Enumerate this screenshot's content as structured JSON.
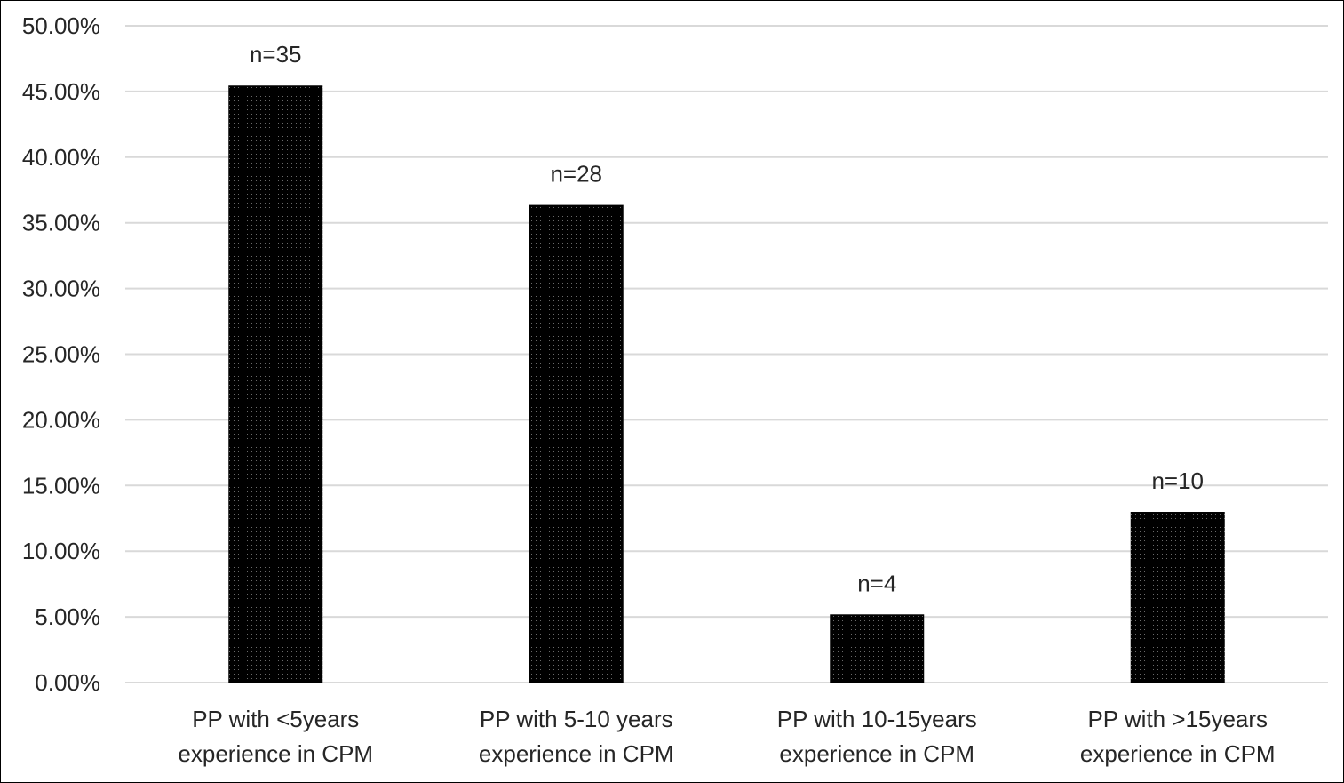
{
  "chart_data": {
    "type": "bar",
    "categories": [
      [
        "PP with <5years",
        "experience in CPM"
      ],
      [
        "PP with 5-10 years",
        "experience in CPM"
      ],
      [
        "PP with 10-15years",
        "experience in CPM"
      ],
      [
        "PP with >15years",
        "experience in CPM"
      ]
    ],
    "values": [
      45.45,
      36.36,
      5.19,
      12.99
    ],
    "data_labels": [
      "n=35",
      "n=28",
      "n=4",
      "n=10"
    ],
    "yticks": [
      "0.00%",
      "5.00%",
      "10.00%",
      "15.00%",
      "20.00%",
      "25.00%",
      "30.00%",
      "35.00%",
      "40.00%",
      "45.00%",
      "50.00%"
    ],
    "ylim": [
      0,
      50
    ],
    "grid": true,
    "colors": {
      "bar": "#000000",
      "bar_dots": "#6a6a6a",
      "grid": "#d9d9d9",
      "text": "#262626"
    }
  }
}
